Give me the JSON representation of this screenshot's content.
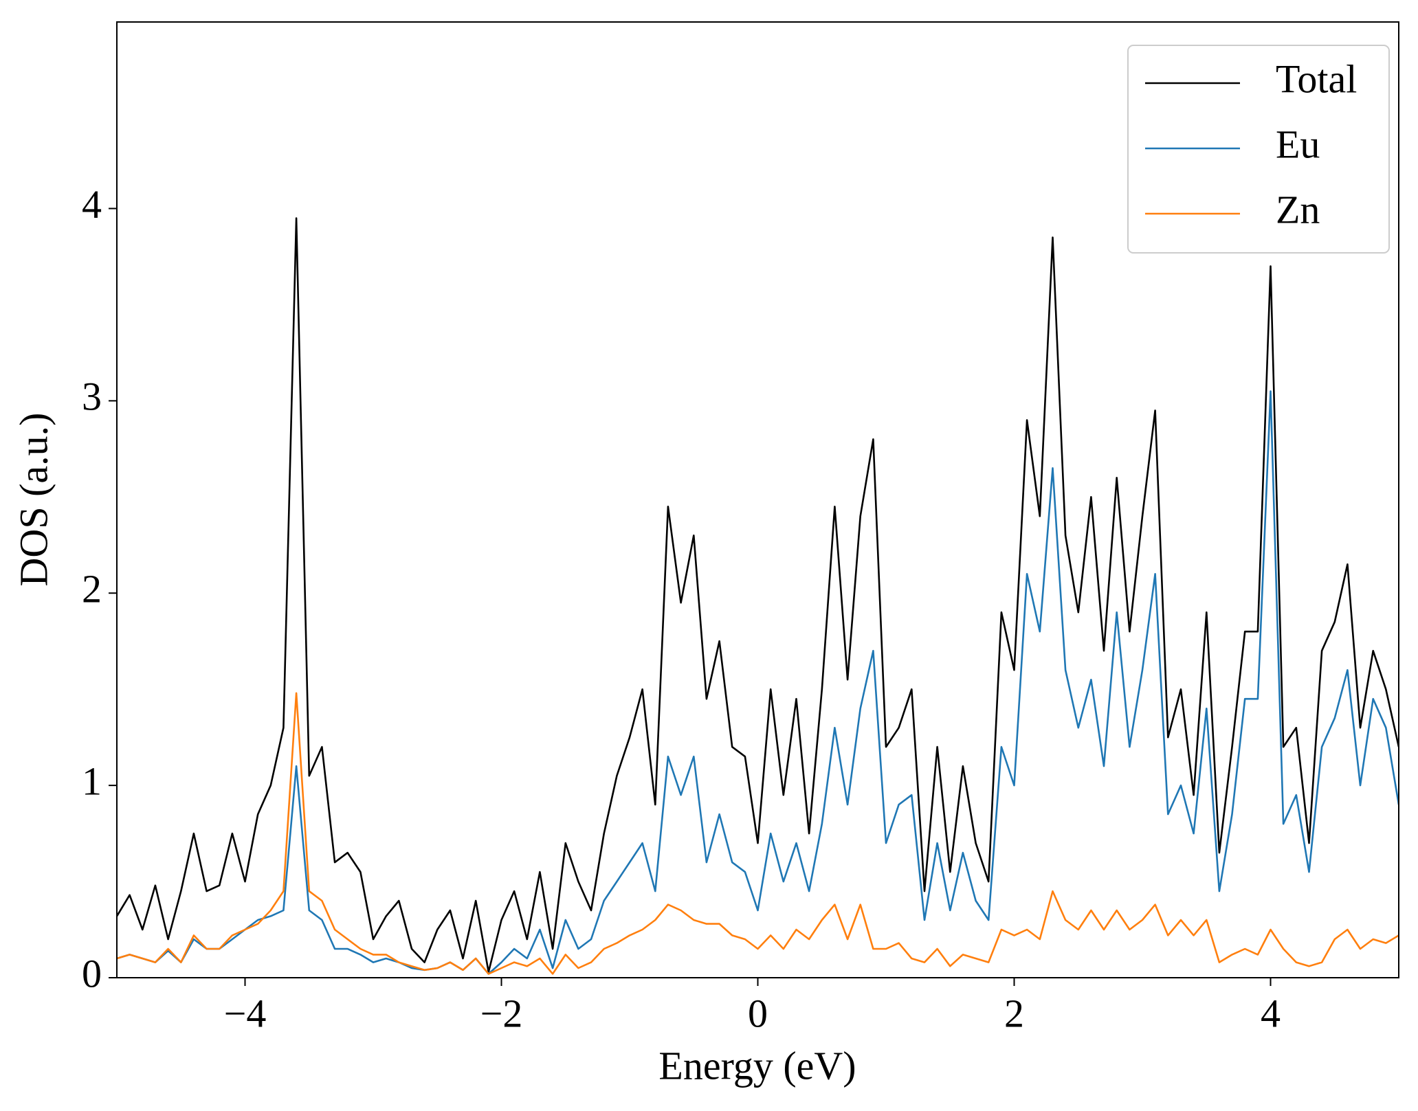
{
  "chart_data": {
    "type": "line",
    "xlabel": "Energy (eV)",
    "ylabel": "DOS (a.u.)",
    "x": [
      -5,
      -4.9,
      -4.8,
      -4.7,
      -4.6,
      -4.5,
      -4.4,
      -4.3,
      -4.2,
      -4.1,
      -4,
      -3.9,
      -3.8,
      -3.7,
      -3.6,
      -3.5,
      -3.4,
      -3.3,
      -3.2,
      -3.1,
      -3,
      -2.9,
      -2.8,
      -2.7,
      -2.6,
      -2.5,
      -2.4,
      -2.3,
      -2.2,
      -2.1,
      -2,
      -1.9,
      -1.8,
      -1.7,
      -1.6,
      -1.5,
      -1.4,
      -1.3,
      -1.2,
      -1.1,
      -1,
      -0.9,
      -0.8,
      -0.7,
      -0.6,
      -0.5,
      -0.4,
      -0.3,
      -0.2,
      -0.1,
      0,
      0.1,
      0.2,
      0.3,
      0.4,
      0.5,
      0.6,
      0.7,
      0.8,
      0.9,
      1,
      1.1,
      1.2,
      1.3,
      1.4,
      1.5,
      1.6,
      1.7,
      1.8,
      1.9,
      2,
      2.1,
      2.2,
      2.3,
      2.4,
      2.5,
      2.6,
      2.7,
      2.8,
      2.9,
      3,
      3.1,
      3.2,
      3.3,
      3.4,
      3.5,
      3.6,
      3.7,
      3.8,
      3.9,
      4,
      4.1,
      4.2,
      4.3,
      4.4,
      4.5,
      4.6,
      4.7,
      4.8,
      4.9,
      5
    ],
    "series": [
      {
        "name": "Total",
        "color": "#000000",
        "values": [
          0.32,
          0.43,
          0.25,
          0.48,
          0.2,
          0.45,
          0.75,
          0.45,
          0.48,
          0.75,
          0.5,
          0.85,
          1.0,
          1.3,
          3.95,
          1.05,
          1.2,
          0.6,
          0.65,
          0.55,
          0.2,
          0.32,
          0.4,
          0.15,
          0.08,
          0.25,
          0.35,
          0.1,
          0.4,
          0.03,
          0.3,
          0.45,
          0.2,
          0.55,
          0.15,
          0.7,
          0.5,
          0.35,
          0.75,
          1.05,
          1.25,
          1.5,
          0.9,
          2.45,
          1.95,
          2.3,
          1.45,
          1.75,
          1.2,
          1.15,
          0.7,
          1.5,
          0.95,
          1.45,
          0.75,
          1.5,
          2.45,
          1.55,
          2.4,
          2.8,
          1.2,
          1.3,
          1.5,
          0.45,
          1.2,
          0.55,
          1.1,
          0.7,
          0.5,
          1.9,
          1.6,
          2.9,
          2.4,
          3.85,
          2.3,
          1.9,
          2.5,
          1.7,
          2.6,
          1.8,
          2.4,
          2.95,
          1.25,
          1.5,
          0.95,
          1.9,
          0.65,
          1.2,
          1.8,
          1.8,
          3.7,
          1.2,
          1.3,
          0.7,
          1.7,
          1.85,
          2.15,
          1.3,
          1.7,
          1.5,
          1.2
        ]
      },
      {
        "name": "Eu",
        "color": "#1f77b4",
        "values": [
          0.1,
          0.12,
          0.1,
          0.08,
          0.14,
          0.08,
          0.2,
          0.15,
          0.15,
          0.2,
          0.25,
          0.3,
          0.32,
          0.35,
          1.1,
          0.35,
          0.3,
          0.15,
          0.15,
          0.12,
          0.08,
          0.1,
          0.08,
          0.05,
          0.04,
          0.05,
          0.08,
          0.04,
          0.1,
          0.02,
          0.08,
          0.15,
          0.1,
          0.25,
          0.05,
          0.3,
          0.15,
          0.2,
          0.4,
          0.5,
          0.6,
          0.7,
          0.45,
          1.15,
          0.95,
          1.15,
          0.6,
          0.85,
          0.6,
          0.55,
          0.35,
          0.75,
          0.5,
          0.7,
          0.45,
          0.8,
          1.3,
          0.9,
          1.4,
          1.7,
          0.7,
          0.9,
          0.95,
          0.3,
          0.7,
          0.35,
          0.65,
          0.4,
          0.3,
          1.2,
          1.0,
          2.1,
          1.8,
          2.65,
          1.6,
          1.3,
          1.55,
          1.1,
          1.9,
          1.2,
          1.6,
          2.1,
          0.85,
          1.0,
          0.75,
          1.4,
          0.45,
          0.85,
          1.45,
          1.45,
          3.05,
          0.8,
          0.95,
          0.55,
          1.2,
          1.35,
          1.6,
          1.0,
          1.45,
          1.3,
          0.9
        ]
      },
      {
        "name": "Zn",
        "color": "#ff7f0e",
        "values": [
          0.1,
          0.12,
          0.1,
          0.08,
          0.15,
          0.08,
          0.22,
          0.15,
          0.15,
          0.22,
          0.25,
          0.28,
          0.35,
          0.45,
          1.48,
          0.45,
          0.4,
          0.25,
          0.2,
          0.15,
          0.12,
          0.12,
          0.08,
          0.06,
          0.04,
          0.05,
          0.08,
          0.04,
          0.1,
          0.02,
          0.05,
          0.08,
          0.06,
          0.1,
          0.02,
          0.12,
          0.05,
          0.08,
          0.15,
          0.18,
          0.22,
          0.25,
          0.3,
          0.38,
          0.35,
          0.3,
          0.28,
          0.28,
          0.22,
          0.2,
          0.15,
          0.22,
          0.15,
          0.25,
          0.2,
          0.3,
          0.38,
          0.2,
          0.38,
          0.15,
          0.15,
          0.18,
          0.1,
          0.08,
          0.15,
          0.06,
          0.12,
          0.1,
          0.08,
          0.25,
          0.22,
          0.25,
          0.2,
          0.45,
          0.3,
          0.25,
          0.35,
          0.25,
          0.35,
          0.25,
          0.3,
          0.38,
          0.22,
          0.3,
          0.22,
          0.3,
          0.08,
          0.12,
          0.15,
          0.12,
          0.25,
          0.15,
          0.08,
          0.06,
          0.08,
          0.2,
          0.25,
          0.15,
          0.2,
          0.18,
          0.22
        ]
      }
    ],
    "xlim": [
      -5,
      5
    ],
    "xticks": [
      {
        "value": -4,
        "label": "−4"
      },
      {
        "value": -2,
        "label": "−2"
      },
      0,
      2,
      4
    ],
    "ylim": [
      0,
      4.97
    ],
    "yticks": [
      0,
      1,
      2,
      3,
      4
    ],
    "grid": false,
    "legend": "upper right"
  }
}
